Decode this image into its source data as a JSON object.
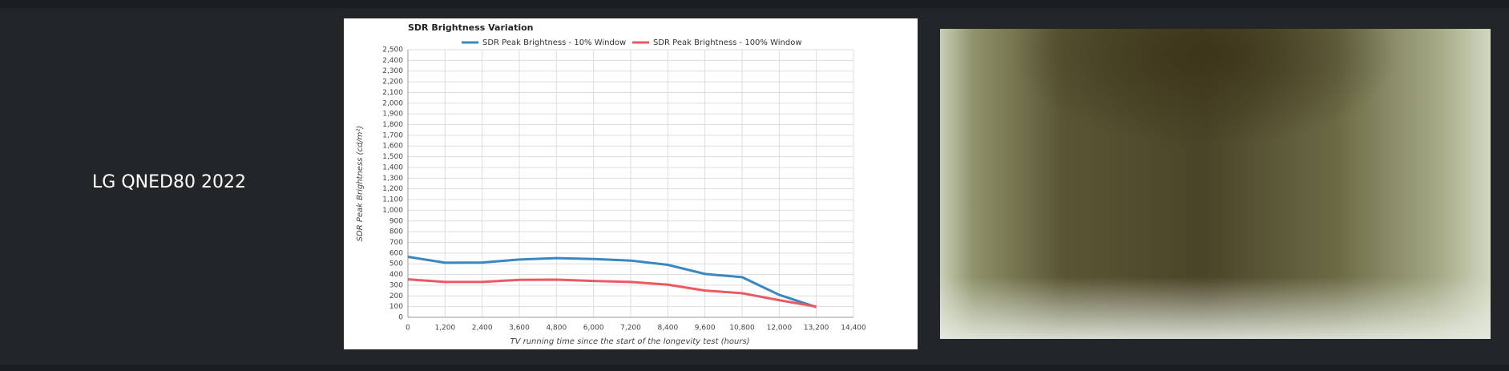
{
  "row_label": "LG QNED80 2022",
  "chart_data": {
    "type": "line",
    "title": "SDR Brightness Variation",
    "x_label": "TV running time since the start of the longevity test (hours)",
    "y_label": "SDR Peak Brightness (cd/m²)",
    "x": [
      0,
      1200,
      2400,
      3600,
      4800,
      6000,
      7200,
      8400,
      9600,
      10800,
      12000,
      13200
    ],
    "series": [
      {
        "name": "SDR Peak Brightness - 10% Window",
        "color": "#3b87c1",
        "values": [
          565,
          510,
          512,
          540,
          553,
          545,
          530,
          490,
          405,
          375,
          210,
          95
        ]
      },
      {
        "name": "SDR Peak Brightness - 100% Window",
        "color": "#ea5a60",
        "values": [
          355,
          330,
          330,
          350,
          352,
          340,
          330,
          305,
          250,
          225,
          160,
          100
        ]
      }
    ],
    "xlim": [
      0,
      14400
    ],
    "xticks": [
      0,
      {
        "value": 1200,
        "label": "1,200"
      },
      {
        "value": 2400,
        "label": "2,400"
      },
      {
        "value": 3600,
        "label": "3,600"
      },
      {
        "value": 4800,
        "label": "4,800"
      },
      {
        "value": 6000,
        "label": "6,000"
      },
      {
        "value": 7200,
        "label": "7,200"
      },
      {
        "value": 8400,
        "label": "8,400"
      },
      {
        "value": 9600,
        "label": "9,600"
      },
      {
        "value": 10800,
        "label": "10,800"
      },
      {
        "value": 12000,
        "label": "12,000"
      },
      {
        "value": 13200,
        "label": "13,200"
      },
      {
        "value": 14400,
        "label": "14,400"
      }
    ],
    "ylim": [
      0,
      2500
    ],
    "yticks": [
      0,
      100,
      200,
      300,
      400,
      500,
      600,
      700,
      800,
      900,
      {
        "value": 1000,
        "label": "1,000"
      },
      {
        "value": 1100,
        "label": "1,100"
      },
      {
        "value": 1200,
        "label": "1,200"
      },
      {
        "value": 1300,
        "label": "1,300"
      },
      {
        "value": 1400,
        "label": "1,400"
      },
      {
        "value": 1500,
        "label": "1,500"
      },
      {
        "value": 1600,
        "label": "1,600"
      },
      {
        "value": 1700,
        "label": "1,700"
      },
      {
        "value": 1800,
        "label": "1,800"
      },
      {
        "value": 1900,
        "label": "1,900"
      },
      {
        "value": 2000,
        "label": "2,000"
      },
      {
        "value": 2100,
        "label": "2,100"
      },
      {
        "value": 2200,
        "label": "2,200"
      },
      {
        "value": 2300,
        "label": "2,300"
      },
      {
        "value": 2400,
        "label": "2,400"
      },
      {
        "value": 2500,
        "label": "2,500"
      }
    ],
    "grid": true,
    "legend": "top"
  }
}
